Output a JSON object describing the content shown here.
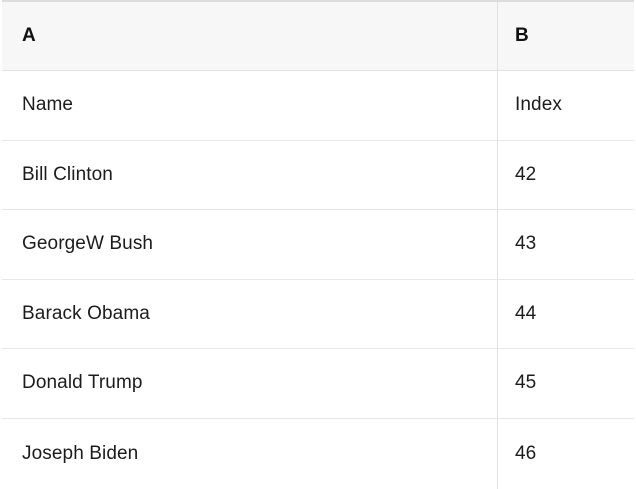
{
  "table": {
    "header": {
      "a": "A",
      "b": "B"
    },
    "rows": [
      {
        "a": "Name",
        "b": "Index"
      },
      {
        "a": "Bill Clinton",
        "b": "42"
      },
      {
        "a": "GeorgeW Bush",
        "b": "43"
      },
      {
        "a": "Barack Obama",
        "b": "44"
      },
      {
        "a": "Donald Trump",
        "b": "45"
      },
      {
        "a": "Joseph Biden",
        "b": "46"
      }
    ]
  },
  "colors": {
    "header_bg": "#f7f7f7",
    "row_bg": "#ffffff",
    "top_border": "#dcdcdc",
    "row_border": "#e7e7e7",
    "column_divider": "#e0e0e0",
    "text": "#1c1c1e"
  }
}
